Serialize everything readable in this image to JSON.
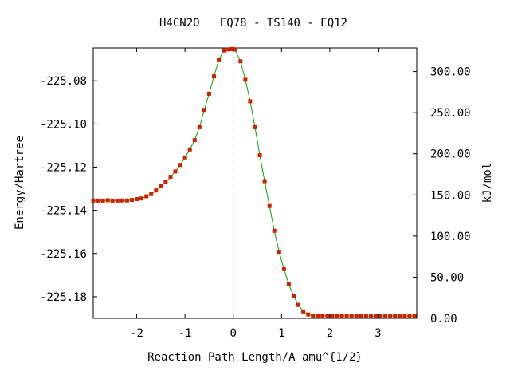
{
  "chart_data": {
    "type": "line",
    "title": "H4CN2O   EQ78 - TS140 - EQ12",
    "xlabel": "Reaction Path Length/A amu^{1/2}",
    "ylabel": "Energy/Hartree",
    "y2label": "kJ/mol",
    "xlim": [
      -2.9,
      3.8
    ],
    "ylim": [
      -225.19,
      -225.0648
    ],
    "y2lim": [
      0.0,
      328.7
    ],
    "xticks": [
      "-2",
      "-1",
      "0",
      "1",
      "2",
      "3"
    ],
    "yticks": [
      "-225.08",
      "-225.10",
      "-225.12",
      "-225.14",
      "-225.16",
      "-225.18"
    ],
    "y2ticks": [
      "300.00",
      "250.00",
      "200.00",
      "150.00",
      "100.00",
      "50.00",
      "0.00"
    ],
    "ts_marker_x": 0.0,
    "grid": false,
    "legend": "none",
    "colors": {
      "line": "#00aa00",
      "points": "#cc2200",
      "ts_line": "#888888"
    },
    "series": [
      {
        "x": [
          -2.9,
          -2.8,
          -2.7,
          -2.6,
          -2.5,
          -2.4,
          -2.3,
          -2.2,
          -2.1,
          -2.0,
          -1.9,
          -1.8,
          -1.7,
          -1.6,
          -1.5,
          -1.4,
          -1.3,
          -1.2,
          -1.1,
          -1.0,
          -0.9,
          -0.8,
          -0.7,
          -0.6,
          -0.5,
          -0.4,
          -0.3,
          -0.2,
          -0.1,
          -0.03,
          0.0,
          0.03,
          0.15,
          0.25,
          0.35,
          0.45,
          0.55,
          0.65,
          0.75,
          0.85,
          0.95,
          1.05,
          1.15,
          1.25,
          1.35,
          1.45,
          1.55,
          1.65,
          1.75,
          1.85,
          1.95,
          2.05,
          2.15,
          2.25,
          2.35,
          2.45,
          2.55,
          2.65,
          2.75,
          2.85,
          2.95,
          3.05,
          3.15,
          3.25,
          3.35,
          3.45,
          3.55,
          3.65,
          3.75
        ],
        "y": [
          -225.1355,
          -225.1355,
          -225.1355,
          -225.1353,
          -225.1355,
          -225.1355,
          -225.1354,
          -225.1354,
          -225.1352,
          -225.1348,
          -225.1345,
          -225.1335,
          -225.1325,
          -225.1308,
          -225.1285,
          -225.127,
          -225.1245,
          -225.122,
          -225.119,
          -225.1155,
          -225.1118,
          -225.1075,
          -225.1015,
          -225.0935,
          -225.086,
          -225.078,
          -225.0705,
          -225.066,
          -225.0655,
          -225.0653,
          -225.0653,
          -225.0655,
          -225.071,
          -225.0795,
          -225.0895,
          -225.1015,
          -225.1145,
          -225.1265,
          -225.138,
          -225.1495,
          -225.1592,
          -225.1672,
          -225.1742,
          -225.1797,
          -225.1838,
          -225.1868,
          -225.1882,
          -225.1888,
          -225.1888,
          -225.1888,
          -225.1888,
          -225.1888,
          -225.1889,
          -225.1889,
          -225.1889,
          -225.1889,
          -225.1889,
          -225.189,
          -225.189,
          -225.189,
          -225.189,
          -225.189,
          -225.189,
          -225.189,
          -225.189,
          -225.189,
          -225.189,
          -225.189,
          -225.189
        ]
      }
    ]
  }
}
